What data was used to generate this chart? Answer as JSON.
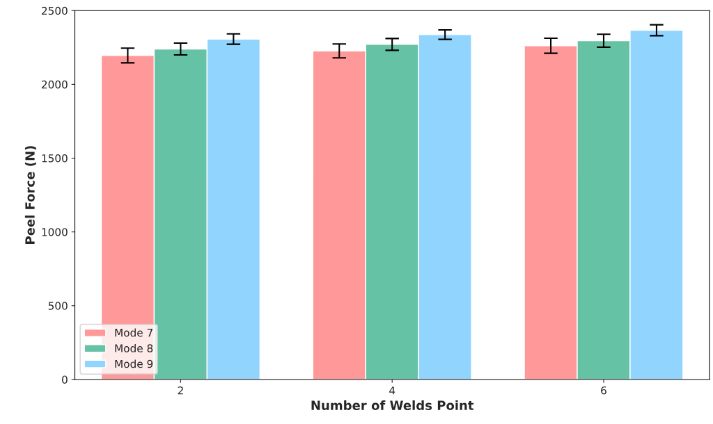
{
  "chart_data": {
    "type": "bar",
    "xlabel": "Number of Welds Point",
    "ylabel": "Peel Force (N)",
    "categories": [
      "2",
      "4",
      "6"
    ],
    "series": [
      {
        "name": "Mode 7",
        "color": "#ff9999",
        "values": [
          2196,
          2227,
          2262
        ],
        "errors": [
          50,
          47,
          51
        ]
      },
      {
        "name": "Mode 8",
        "color": "#66c2a5",
        "values": [
          2240,
          2271,
          2296
        ],
        "errors": [
          40,
          40,
          44
        ]
      },
      {
        "name": "Mode 9",
        "color": "#91d4fd",
        "values": [
          2307,
          2337,
          2367
        ],
        "errors": [
          35,
          32,
          37
        ]
      }
    ],
    "ylim": [
      0,
      2500
    ],
    "yticks": [
      0,
      500,
      1000,
      1500,
      2000,
      2500
    ],
    "legend": "lower left",
    "grid": false
  }
}
